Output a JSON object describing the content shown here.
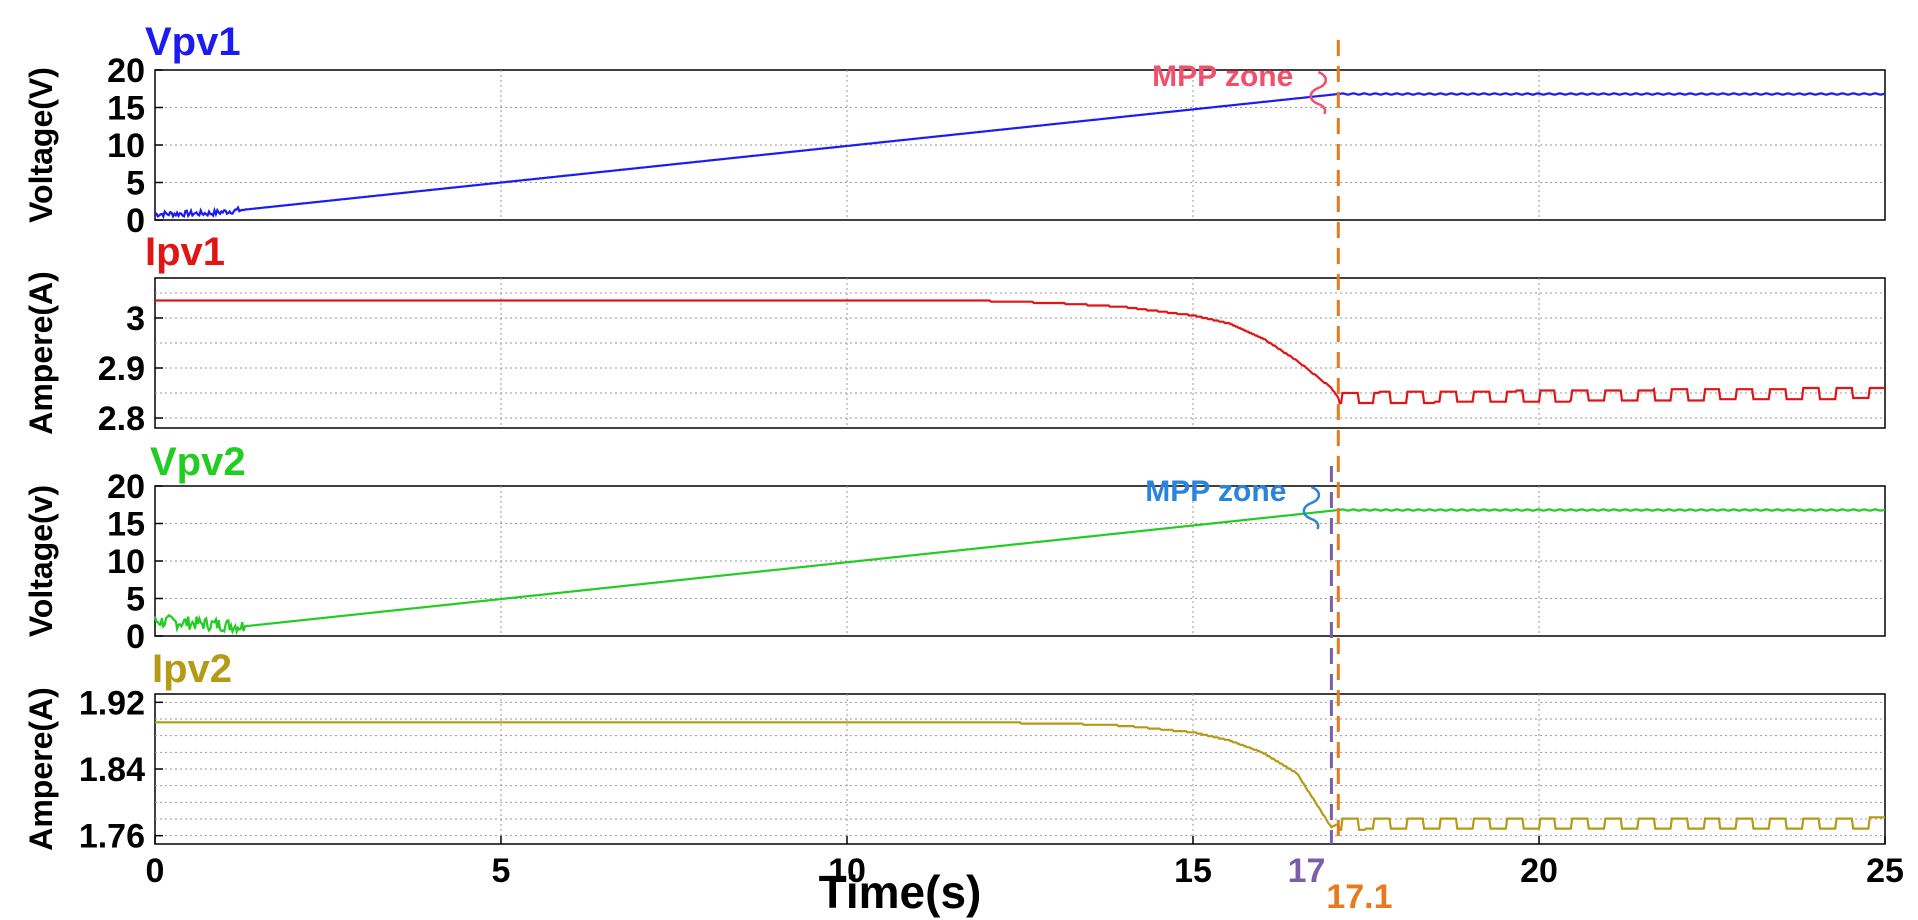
{
  "chart_data": {
    "type": "line",
    "xlabel": "Time(s)",
    "xlim": [
      0,
      25
    ],
    "xticks": [
      0,
      5,
      10,
      15,
      20,
      25
    ],
    "grid": true,
    "markers": [
      {
        "x": 17,
        "label": "17",
        "color": "#7a5ea8",
        "spans": [
          2,
          3
        ]
      },
      {
        "x": 17.1,
        "label": "17.1",
        "color": "#e87a1e",
        "spans": [
          0,
          1,
          2,
          3
        ]
      }
    ],
    "panels": [
      {
        "title": "Vpv1",
        "ylabel": "Voltage(V)",
        "color": "#1c1cf0",
        "ylim": [
          0,
          20
        ],
        "yticks": [
          0,
          5,
          10,
          15,
          20
        ],
        "minor_step": 5,
        "annotation": {
          "text": "MPP zone",
          "color": "#f0506a",
          "x": 17.1
        },
        "series": [
          {
            "name": "Vpv1",
            "x": [
              0,
              0.8,
              17.1,
              25
            ],
            "y": [
              0.8,
              0.9,
              16.8,
              16.8
            ]
          }
        ]
      },
      {
        "title": "Ipv1",
        "ylabel": "Ampere(A)",
        "color": "#e01616",
        "ylim": [
          2.78,
          3.08
        ],
        "yticks": [
          2.8,
          2.9,
          3
        ],
        "minor_step": 0.05,
        "series": [
          {
            "name": "Ipv1",
            "x": [
              0,
              10,
              12,
              13,
              14,
              15,
              15.5,
              16,
              16.5,
              17,
              17.1,
              25
            ],
            "y": [
              3.035,
              3.035,
              3.034,
              3.03,
              3.022,
              3.005,
              2.99,
              2.96,
              2.915,
              2.86,
              2.84,
              2.85
            ]
          }
        ]
      },
      {
        "title": "Vpv2",
        "ylabel": "Voltage(v)",
        "color": "#22cc22",
        "ylim": [
          0,
          20
        ],
        "yticks": [
          0,
          5,
          10,
          15,
          20
        ],
        "minor_step": 5,
        "annotation": {
          "text": "MPP zone",
          "color": "#2a84dc",
          "x": 17
        },
        "series": [
          {
            "name": "Vpv2",
            "x": [
              0,
              0.6,
              1.3,
              17,
              17.1,
              25
            ],
            "y": [
              2,
              1.7,
              1.3,
              16.7,
              16.8,
              16.8
            ]
          }
        ]
      },
      {
        "title": "Ipv2",
        "ylabel": "Ampere(A)",
        "color": "#b59a16",
        "ylim": [
          1.75,
          1.93
        ],
        "yticks": [
          1.76,
          1.84,
          1.92
        ],
        "minor_step": 0.02,
        "series": [
          {
            "name": "Ipv2",
            "x": [
              0,
              11,
              13,
              14,
              15,
              15.5,
              16,
              16.5,
              17,
              17.1,
              25
            ],
            "y": [
              1.896,
              1.896,
              1.895,
              1.892,
              1.884,
              1.875,
              1.86,
              1.835,
              1.77,
              1.774,
              1.775
            ]
          }
        ]
      }
    ]
  }
}
